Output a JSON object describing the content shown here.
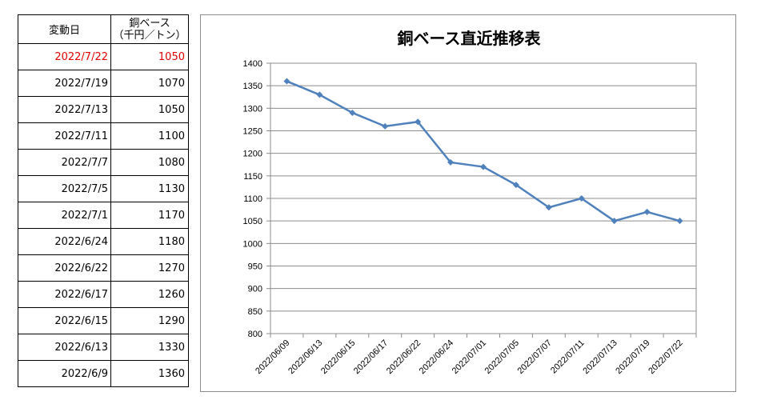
{
  "table": {
    "headers": {
      "date": "変動日",
      "price_line1": "銅ベース",
      "price_line2": "（千円／トン）"
    },
    "rows": [
      {
        "date": "2022/7/22",
        "price": "1050",
        "highlight": true
      },
      {
        "date": "2022/7/19",
        "price": "1070"
      },
      {
        "date": "2022/7/13",
        "price": "1050"
      },
      {
        "date": "2022/7/11",
        "price": "1100"
      },
      {
        "date": "2022/7/7",
        "price": "1080"
      },
      {
        "date": "2022/7/5",
        "price": "1130"
      },
      {
        "date": "2022/7/1",
        "price": "1170"
      },
      {
        "date": "2022/6/24",
        "price": "1180"
      },
      {
        "date": "2022/6/22",
        "price": "1270"
      },
      {
        "date": "2022/6/17",
        "price": "1260"
      },
      {
        "date": "2022/6/15",
        "price": "1290"
      },
      {
        "date": "2022/6/13",
        "price": "1330"
      },
      {
        "date": "2022/6/9",
        "price": "1360"
      }
    ],
    "highlight_color": "#e00000"
  },
  "chart_data": {
    "type": "line",
    "title": "銅ベース直近推移表",
    "xlabel": "",
    "ylabel": "",
    "categories": [
      "2022/06/09",
      "2022/06/13",
      "2022/06/15",
      "2022/06/17",
      "2022/06/22",
      "2022/06/24",
      "2022/07/01",
      "2022/07/05",
      "2022/07/07",
      "2022/07/11",
      "2022/07/13",
      "2022/07/19",
      "2022/07/22"
    ],
    "series": [
      {
        "values": [
          1360,
          1330,
          1290,
          1260,
          1270,
          1180,
          1170,
          1130,
          1080,
          1100,
          1050,
          1070,
          1050
        ],
        "color": "#4f81bd"
      }
    ],
    "ylim": [
      800,
      1400
    ],
    "yticks": [
      800,
      850,
      900,
      950,
      1000,
      1050,
      1100,
      1150,
      1200,
      1250,
      1300,
      1350,
      1400
    ],
    "grid": true,
    "legend": "none"
  }
}
